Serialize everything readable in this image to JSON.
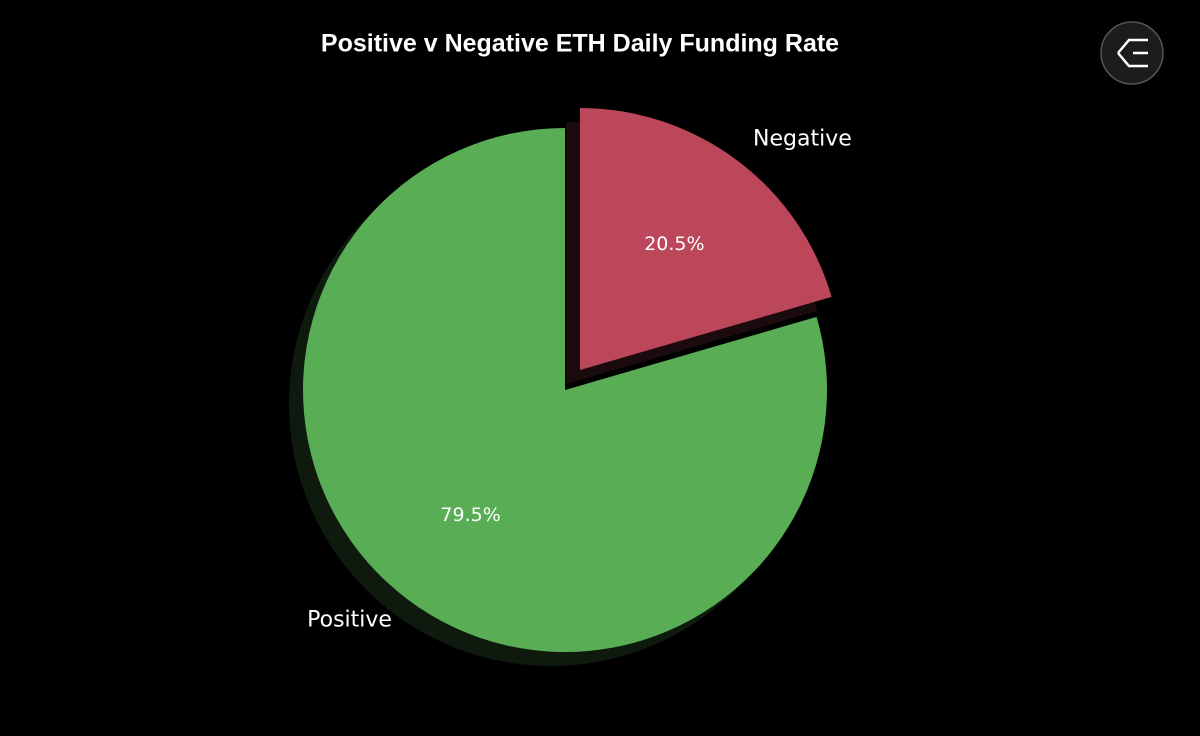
{
  "chart_data": {
    "type": "pie",
    "title": "Positive v Negative ETH Daily Funding Rate",
    "categories": [
      "Negative",
      "Positive"
    ],
    "values": [
      20.5,
      79.5
    ],
    "value_labels": [
      "20.5%",
      "79.5%"
    ],
    "colors": [
      "#bc475b",
      "#58ad55"
    ]
  }
}
